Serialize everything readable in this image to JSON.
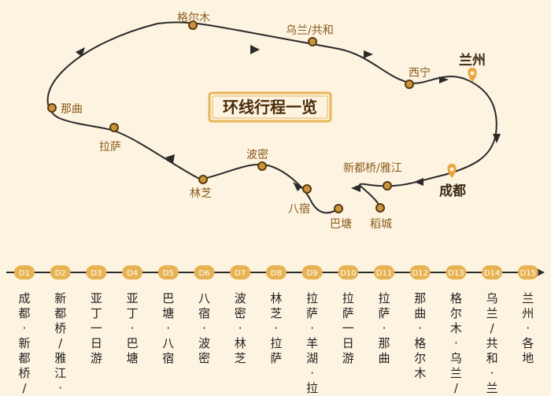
{
  "colors": {
    "background": "#fdf3e1",
    "route_line": "#2a2a2a",
    "node_fill": "#c9963e",
    "label_text": "#8a5a1a",
    "badge_fill": "#e7b252",
    "title_border": "#e6b657",
    "pin": "#e9a63b"
  },
  "map": {
    "title": "环线行程一览",
    "origin_labels": {
      "lanzhou": "兰州",
      "chengdu": "成都"
    },
    "stops": [
      {
        "id": "golmud",
        "label": "格尔木"
      },
      {
        "id": "wulan",
        "label": "乌兰/共和"
      },
      {
        "id": "xining",
        "label": "西宁"
      },
      {
        "id": "naqu",
        "label": "那曲"
      },
      {
        "id": "lhasa",
        "label": "拉萨"
      },
      {
        "id": "bomi",
        "label": "波密"
      },
      {
        "id": "xindu",
        "label": "新都桥/雅江"
      },
      {
        "id": "linzhi",
        "label": "林芝"
      },
      {
        "id": "basu",
        "label": "八宿"
      },
      {
        "id": "batang",
        "label": "巴塘"
      },
      {
        "id": "daocheng",
        "label": "稻城"
      }
    ]
  },
  "timeline": {
    "days": [
      {
        "day": "D1",
        "desc": "成都-新都桥/雅"
      },
      {
        "day": "D2",
        "desc": "新都桥/雅江-亚"
      },
      {
        "day": "D3",
        "desc": "亚丁一日游"
      },
      {
        "day": "D4",
        "desc": "亚丁-巴塘"
      },
      {
        "day": "D5",
        "desc": "巴塘-八宿"
      },
      {
        "day": "D6",
        "desc": "八宿-波密"
      },
      {
        "day": "D7",
        "desc": "波密-林芝"
      },
      {
        "day": "D8",
        "desc": "林芝-拉萨"
      },
      {
        "day": "D9",
        "desc": "拉萨-羊湖-拉萨"
      },
      {
        "day": "D10",
        "desc": "拉萨一日游"
      },
      {
        "day": "D11",
        "desc": "拉萨-那曲"
      },
      {
        "day": "D12",
        "desc": "那曲-格尔木"
      },
      {
        "day": "D13",
        "desc": "格尔木-乌兰/共"
      },
      {
        "day": "D14",
        "desc": "乌兰/共和-兰州"
      },
      {
        "day": "D15",
        "desc": "兰州-各地"
      }
    ]
  }
}
